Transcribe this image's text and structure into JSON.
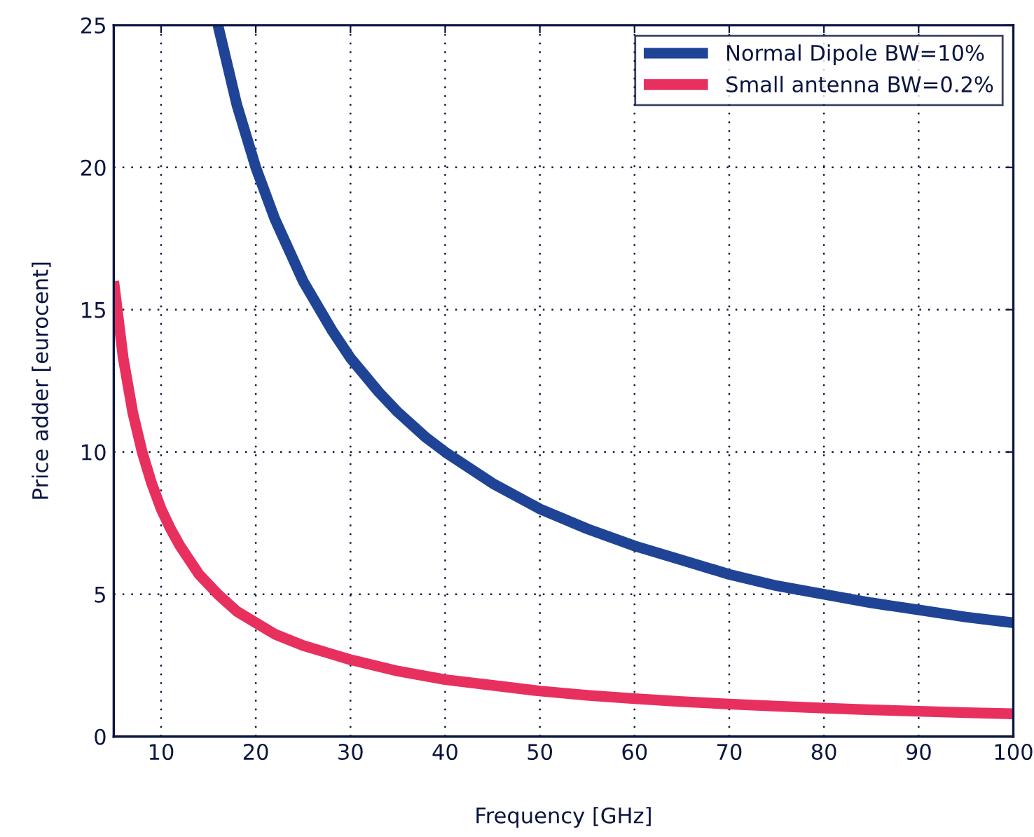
{
  "chart_data": {
    "type": "line",
    "xlabel": "Frequency [GHz]",
    "ylabel": "Price adder [eurocent]",
    "xlim": [
      5,
      100
    ],
    "xticks": [
      10,
      20,
      30,
      40,
      50,
      60,
      70,
      80,
      90,
      100
    ],
    "ylim": [
      0,
      25
    ],
    "yticks": [
      0,
      5,
      10,
      15,
      20,
      25
    ],
    "grid": true,
    "legend": "top right",
    "line_style": "solid",
    "marker": "none",
    "series": [
      {
        "name": "Normal Dipole BW=10%",
        "color": "#1f4496",
        "x": [
          16,
          18,
          20,
          22,
          25,
          28,
          30,
          33,
          35,
          38,
          40,
          45,
          50,
          55,
          60,
          65,
          70,
          75,
          80,
          85,
          90,
          95,
          100
        ],
        "values": [
          25,
          22.2,
          20,
          18.2,
          16,
          14.3,
          13.3,
          12.1,
          11.4,
          10.5,
          10,
          8.9,
          8,
          7.3,
          6.7,
          6.2,
          5.7,
          5.3,
          5,
          4.7,
          4.45,
          4.2,
          4
        ]
      },
      {
        "name": "Small antenna BW=0.2%",
        "color": "#e8305f",
        "x": [
          5,
          6,
          7,
          8,
          9,
          10,
          11,
          12,
          14,
          16,
          18,
          20,
          22,
          25,
          28,
          30,
          35,
          40,
          45,
          50,
          55,
          60,
          65,
          70,
          75,
          80,
          85,
          90,
          95,
          100
        ],
        "values": [
          16,
          13.3,
          11.4,
          10,
          8.9,
          8,
          7.3,
          6.7,
          5.7,
          5,
          4.4,
          4,
          3.6,
          3.2,
          2.9,
          2.7,
          2.3,
          2,
          1.8,
          1.6,
          1.45,
          1.33,
          1.23,
          1.14,
          1.07,
          1,
          0.94,
          0.89,
          0.84,
          0.8
        ]
      }
    ]
  }
}
